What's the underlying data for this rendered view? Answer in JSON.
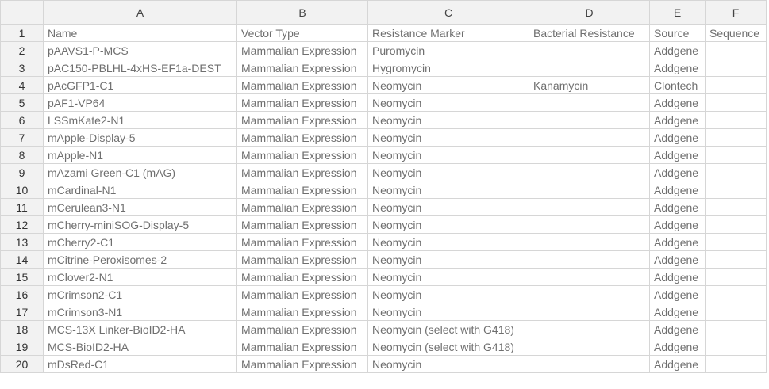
{
  "columns": [
    "A",
    "B",
    "C",
    "D",
    "E",
    "F"
  ],
  "rows": [
    {
      "num": "1",
      "cells": [
        "Name",
        "Vector Type",
        "Resistance Marker",
        "Bacterial Resistance",
        "Source",
        "Sequence"
      ]
    },
    {
      "num": "2",
      "cells": [
        "pAAVS1-P-MCS",
        "Mammalian Expression",
        "Puromycin",
        "",
        "Addgene",
        ""
      ]
    },
    {
      "num": "3",
      "cells": [
        "pAC150-PBLHL-4xHS-EF1a-DEST",
        "Mammalian Expression",
        "Hygromycin",
        "",
        "Addgene",
        ""
      ]
    },
    {
      "num": "4",
      "cells": [
        "pAcGFP1-C1",
        "Mammalian Expression",
        "Neomycin",
        "Kanamycin",
        "Clontech",
        ""
      ]
    },
    {
      "num": "5",
      "cells": [
        "pAF1-VP64",
        "Mammalian Expression",
        "Neomycin",
        "",
        "Addgene",
        ""
      ]
    },
    {
      "num": "6",
      "cells": [
        "LSSmKate2-N1",
        "Mammalian Expression",
        "Neomycin",
        "",
        "Addgene",
        ""
      ]
    },
    {
      "num": "7",
      "cells": [
        "mApple-Display-5",
        "Mammalian Expression",
        "Neomycin",
        "",
        "Addgene",
        ""
      ]
    },
    {
      "num": "8",
      "cells": [
        "mApple-N1",
        "Mammalian Expression",
        "Neomycin",
        "",
        "Addgene",
        ""
      ]
    },
    {
      "num": "9",
      "cells": [
        "mAzami Green-C1 (mAG)",
        "Mammalian Expression",
        "Neomycin",
        "",
        "Addgene",
        ""
      ]
    },
    {
      "num": "10",
      "cells": [
        "mCardinal-N1",
        "Mammalian Expression",
        "Neomycin",
        "",
        "Addgene",
        ""
      ]
    },
    {
      "num": "11",
      "cells": [
        "mCerulean3-N1",
        "Mammalian Expression",
        "Neomycin",
        "",
        "Addgene",
        ""
      ]
    },
    {
      "num": "12",
      "cells": [
        "mCherry-miniSOG-Display-5",
        "Mammalian Expression",
        "Neomycin",
        "",
        "Addgene",
        ""
      ]
    },
    {
      "num": "13",
      "cells": [
        "mCherry2-C1",
        "Mammalian Expression",
        "Neomycin",
        "",
        "Addgene",
        ""
      ]
    },
    {
      "num": "14",
      "cells": [
        "mCitrine-Peroxisomes-2",
        "Mammalian Expression",
        "Neomycin",
        "",
        "Addgene",
        ""
      ]
    },
    {
      "num": "15",
      "cells": [
        "mClover2-N1",
        "Mammalian Expression",
        "Neomycin",
        "",
        "Addgene",
        ""
      ]
    },
    {
      "num": "16",
      "cells": [
        "mCrimson2-C1",
        "Mammalian Expression",
        "Neomycin",
        "",
        "Addgene",
        ""
      ]
    },
    {
      "num": "17",
      "cells": [
        "mCrimson3-N1",
        "Mammalian Expression",
        "Neomycin",
        "",
        "Addgene",
        ""
      ]
    },
    {
      "num": "18",
      "cells": [
        "MCS-13X Linker-BioID2-HA",
        "Mammalian Expression",
        "Neomycin (select with G418)",
        "",
        "Addgene",
        ""
      ]
    },
    {
      "num": "19",
      "cells": [
        "MCS-BioID2-HA",
        "Mammalian Expression",
        "Neomycin (select with G418)",
        "",
        "Addgene",
        ""
      ]
    },
    {
      "num": "20",
      "cells": [
        "mDsRed-C1",
        "Mammalian Expression",
        "Neomycin",
        "",
        "Addgene",
        ""
      ]
    }
  ]
}
